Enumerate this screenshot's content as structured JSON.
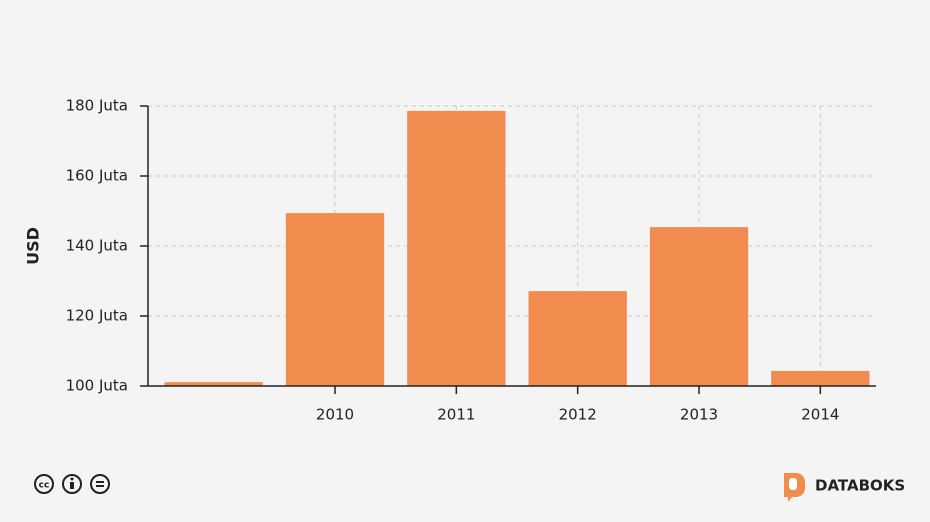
{
  "chart_data": {
    "type": "bar",
    "y_label": "USD",
    "categories": [
      null,
      "2010",
      "2011",
      "2012",
      "2013",
      "2014"
    ],
    "values": [
      101.1,
      149.4,
      178.6,
      127.1,
      145.4,
      104.3
    ],
    "color": "#f28b4e",
    "ylim": [
      100,
      180
    ],
    "yticks": [
      {
        "value": 100,
        "label": "100 Juta"
      },
      {
        "value": 120,
        "label": "120 Juta"
      },
      {
        "value": 140,
        "label": "140 Juta"
      },
      {
        "value": 160,
        "label": "160 Juta"
      },
      {
        "value": 180,
        "label": "180 Juta"
      }
    ],
    "grid": true
  },
  "footer": {
    "brand": "DATABOKS"
  }
}
